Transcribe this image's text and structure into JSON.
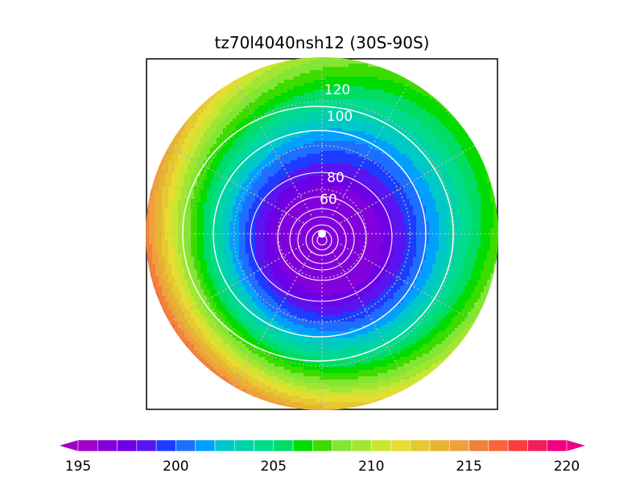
{
  "chart_data": {
    "type": "heatmap",
    "title": "tz70l4040nsh12 (30S-90S)",
    "projection": "polar stereographic",
    "latitude_range": [
      "30S",
      "90S"
    ],
    "grid": true,
    "filled_field": {
      "colorbar_min": 195,
      "colorbar_max": 220,
      "colorbar_step": 1,
      "colorbar_tick_labels": [
        "195",
        "200",
        "205",
        "210",
        "215",
        "220"
      ],
      "colorbar_tick_values": [
        195,
        200,
        205,
        210,
        215,
        220
      ],
      "colorbar_extends": "both",
      "pole_value": 196,
      "edge_value_min": 213,
      "edge_value_max": 219
    },
    "contours": {
      "color": "#ffffff",
      "labeled_levels": [
        {
          "value": 120,
          "text": "120"
        },
        {
          "value": 100,
          "text": "100"
        },
        {
          "value": 80,
          "text": "80"
        },
        {
          "value": 60,
          "text": "60"
        }
      ],
      "levels": [
        120,
        100,
        80,
        60,
        50,
        40,
        30,
        20,
        10
      ]
    },
    "colors": [
      "#a000c8",
      "#8200dc",
      "#6e00e6",
      "#5a14f0",
      "#1e3cff",
      "#1e6eff",
      "#00a0ff",
      "#00c8c8",
      "#00d2aa",
      "#00dc8c",
      "#00dc64",
      "#00dc00",
      "#3cdc00",
      "#82e632",
      "#a0e632",
      "#c8e632",
      "#e6dc32",
      "#e6c832",
      "#e6b432",
      "#f0a03c",
      "#f0823c",
      "#fa643c",
      "#fa3c3c",
      "#f01e5a",
      "#f00082"
    ]
  }
}
